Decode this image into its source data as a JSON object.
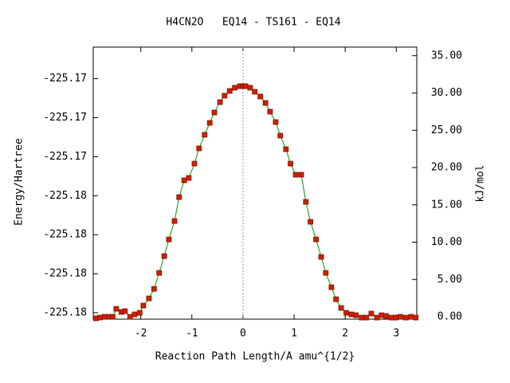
{
  "chart_data": {
    "type": "line",
    "title": "H4CN2O   EQ14 - TS161 - EQ14",
    "x_label": "Reaction Path Length/A amu^{1/2}",
    "y_label": "Energy/Hartree",
    "y2_label": "kJ/mol",
    "xlim": [
      -2.93,
      3.4
    ],
    "xticks": [
      -2,
      -1,
      0,
      1,
      2,
      3
    ],
    "ylim": [
      -225.18233,
      -225.16838
    ],
    "yticks": [
      {
        "value": -225.182,
        "label": "-225.18"
      },
      {
        "value": -225.18,
        "label": "-225.18"
      },
      {
        "value": -225.178,
        "label": "-225.18"
      },
      {
        "value": -225.176,
        "label": "-225.18"
      },
      {
        "value": -225.174,
        "label": "-225.17"
      },
      {
        "value": -225.172,
        "label": "-225.17"
      },
      {
        "value": -225.17,
        "label": "-225.17"
      }
    ],
    "y2lim": [
      -0.32,
      36.15
    ],
    "y2ticks": [
      {
        "value": 0,
        "label": "0.00"
      },
      {
        "value": 5,
        "label": "5.00"
      },
      {
        "value": 10,
        "label": "10.00"
      },
      {
        "value": 15,
        "label": "15.00"
      },
      {
        "value": 20,
        "label": "20.00"
      },
      {
        "value": 25,
        "label": "25.00"
      },
      {
        "value": 30,
        "label": "30.00"
      },
      {
        "value": 35,
        "label": "35.00"
      }
    ],
    "vlines": [
      0
    ],
    "grid": false,
    "series": [
      {
        "axis": "y2",
        "color": "#00a000",
        "marker_color": "#cc2200",
        "x": [
          -2.88,
          -2.8,
          -2.71,
          -2.62,
          -2.55,
          -2.48,
          -2.38,
          -2.31,
          -2.21,
          -2.12,
          -2.02,
          -1.95,
          -1.84,
          -1.74,
          -1.64,
          -1.54,
          -1.45,
          -1.34,
          -1.25,
          -1.15,
          -1.06,
          -0.95,
          -0.86,
          -0.75,
          -0.65,
          -0.56,
          -0.45,
          -0.36,
          -0.26,
          -0.16,
          -0.06,
          0,
          0.05,
          0.14,
          0.23,
          0.34,
          0.44,
          0.53,
          0.64,
          0.73,
          0.84,
          0.93,
          1.03,
          1.14,
          1.23,
          1.32,
          1.43,
          1.53,
          1.62,
          1.73,
          1.82,
          1.92,
          2.02,
          2.12,
          2.21,
          2.32,
          2.41,
          2.51,
          2.62,
          2.71,
          2.8,
          2.9,
          2.99,
          3.08,
          3.19,
          3.29,
          3.38
        ],
        "values": [
          -0.21,
          -0.11,
          0,
          0,
          0,
          1.07,
          0.64,
          0.75,
          0,
          0.32,
          0.53,
          1.5,
          2.46,
          3.74,
          5.88,
          8.13,
          10.37,
          12.83,
          16.04,
          18.29,
          18.61,
          20.53,
          22.57,
          24.39,
          25.99,
          27.38,
          28.77,
          29.63,
          30.27,
          30.7,
          30.91,
          30.91,
          30.91,
          30.7,
          30.16,
          29.52,
          28.66,
          27.49,
          26.1,
          24.28,
          22.46,
          20.53,
          19.04,
          19.04,
          15.4,
          12.73,
          10.37,
          8.02,
          5.88,
          3.96,
          2.35,
          1.18,
          0.53,
          0.32,
          0.21,
          -0.11,
          -0.11,
          0.43,
          -0.11,
          0.21,
          0.11,
          -0.11,
          -0.11,
          0,
          -0.11,
          0,
          -0.11
        ]
      }
    ]
  }
}
